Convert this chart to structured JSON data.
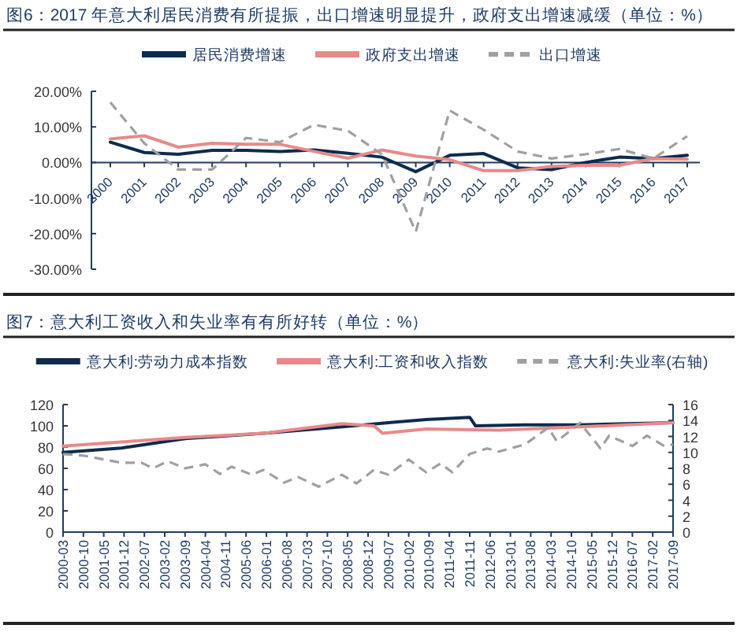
{
  "chart_data": [
    {
      "type": "line",
      "title": "图6：2017 年意大利居民消费有所提振，出口增速明显提升，政府支出增速减缓（单位：%）",
      "categories": [
        "2000",
        "2001",
        "2002",
        "2003",
        "2004",
        "2005",
        "2006",
        "2007",
        "2008",
        "2009",
        "2010",
        "2011",
        "2012",
        "2013",
        "2014",
        "2015",
        "2016",
        "2017"
      ],
      "series": [
        {
          "name": "居民消费增速",
          "color": "#0d2b4e",
          "line_style": "solid",
          "values": [
            5.7,
            2.8,
            2.3,
            3.4,
            3.4,
            3.1,
            3.5,
            2.6,
            1.5,
            -2.6,
            2.0,
            2.5,
            -1.5,
            -2.0,
            0,
            1.5,
            1.1,
            2.0
          ]
        },
        {
          "name": "政府支出增速",
          "color": "#e8898a",
          "line_style": "solid",
          "values": [
            6.6,
            7.5,
            4.3,
            5.4,
            5.1,
            5.1,
            3.1,
            1.2,
            3.5,
            1.8,
            0.8,
            -2.3,
            -2.3,
            -1.1,
            -0.8,
            -0.8,
            1.1,
            0.9
          ]
        },
        {
          "name": "出口增速",
          "color": "#a0a0a0",
          "line_style": "dashed",
          "values": [
            16.9,
            5.4,
            -2.0,
            -2.0,
            6.9,
            5.7,
            10.6,
            8.9,
            2.3,
            -19.5,
            14.6,
            9.2,
            3.1,
            1.1,
            2.3,
            3.8,
            1.1,
            7.4
          ]
        }
      ],
      "ylim": [
        -30,
        20
      ],
      "yticks": [
        {
          "value": -30,
          "label": "-30.00%"
        },
        {
          "value": -20,
          "label": "-20.00%"
        },
        {
          "value": -10,
          "label": "-10.00%"
        },
        {
          "value": 0,
          "label": "0.00%"
        },
        {
          "value": 10,
          "label": "10.00%"
        },
        {
          "value": 20,
          "label": "20.00%"
        }
      ],
      "legend": "top"
    },
    {
      "type": "line",
      "title": "图7：意大利工资收入和失业率有有所好转（单位：%）",
      "series": [
        {
          "name": "意大利:劳动力成本指数",
          "color": "#0d2b4e",
          "line_style": "solid",
          "x": [
            "2000-03",
            "2001-11",
            "2003-09",
            "2005-12",
            "2008-03",
            "2010-08",
            "2011-11",
            "2012-01",
            "2013-06",
            "2015-01",
            "2017-09"
          ],
          "values": [
            75,
            79,
            88,
            93,
            99,
            106,
            108,
            100,
            101,
            101,
            103
          ]
        },
        {
          "name": "意大利:工资和收入指数",
          "color": "#e8898a",
          "line_style": "solid",
          "x": [
            "2000-03",
            "2003-09",
            "2005-12",
            "2008-03",
            "2009-02",
            "2009-05",
            "2010-08",
            "2012-09",
            "2015-01",
            "2017-09"
          ],
          "values": [
            81,
            89,
            93,
            102,
            100,
            93,
            97,
            96,
            99,
            103
          ]
        },
        {
          "name": "意大利:失业率(右轴)",
          "color": "#a0a0a0",
          "line_style": "dashed",
          "axis": "y2",
          "x": [
            "2000-03",
            "2000-10",
            "2001-11",
            "2002-06",
            "2002-10",
            "2003-03",
            "2003-09",
            "2004-04",
            "2004-09",
            "2005-01",
            "2005-08",
            "2005-12",
            "2006-07",
            "2006-12",
            "2007-07",
            "2008-03",
            "2008-08",
            "2009-02",
            "2009-07",
            "2010-02",
            "2010-08",
            "2011-01",
            "2011-05",
            "2011-11",
            "2012-05",
            "2012-09",
            "2013-06",
            "2014-02",
            "2014-05",
            "2015-01",
            "2015-08",
            "2015-11",
            "2016-07",
            "2016-12",
            "2017-06",
            "2017-09"
          ],
          "values": [
            9.8,
            9.6,
            8.7,
            8.7,
            8.0,
            8.9,
            8.0,
            8.5,
            7.3,
            8.2,
            7.2,
            7.8,
            6.2,
            6.9,
            5.7,
            7.2,
            6.1,
            7.8,
            7.2,
            9.1,
            7.5,
            8.6,
            7.5,
            9.8,
            10.5,
            10.1,
            11.0,
            13.1,
            11.4,
            13.7,
            10.5,
            12.1,
            10.8,
            12.1,
            10.8,
            11.0
          ]
        }
      ],
      "xlim": [
        "2000-03",
        "2017-09"
      ],
      "xticks": [
        "2000-03",
        "2000-10",
        "2001-05",
        "2001-12",
        "2002-07",
        "2003-02",
        "2003-09",
        "2004-04",
        "2004-11",
        "2005-06",
        "2006-01",
        "2006-08",
        "2007-03",
        "2007-10",
        "2008-05",
        "2008-12",
        "2009-07",
        "2010-02",
        "2010-09",
        "2011-04",
        "2011-11",
        "2012-06",
        "2013-01",
        "2013-08",
        "2014-03",
        "2014-10",
        "2015-05",
        "2015-12",
        "2016-07",
        "2017-02",
        "2017-09"
      ],
      "ylim": [
        0,
        120
      ],
      "yticks": [
        0,
        20,
        40,
        60,
        80,
        100,
        120
      ],
      "y2lim": [
        0,
        16
      ],
      "y2ticks": [
        0,
        2,
        4,
        6,
        8,
        10,
        12,
        14,
        16
      ],
      "legend": "top"
    }
  ]
}
